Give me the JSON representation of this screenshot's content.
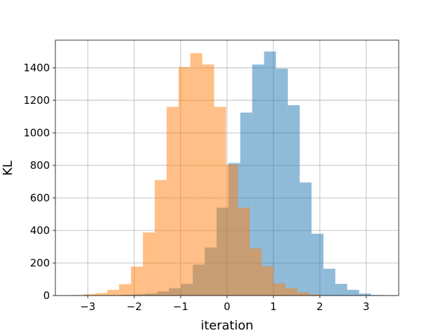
{
  "chart_data": {
    "type": "histogram",
    "title": "",
    "xlabel": "iteration",
    "ylabel": "KL",
    "xlim": [
      -3.7,
      3.7
    ],
    "ylim": [
      0,
      1570
    ],
    "xticks": [
      -3,
      -2,
      -1,
      0,
      1,
      2,
      3
    ],
    "xtick_labels": [
      "−3",
      "−2",
      "−1",
      "0",
      "1",
      "2",
      "3"
    ],
    "yticks": [
      0,
      200,
      400,
      600,
      800,
      1000,
      1200,
      1400
    ],
    "ytick_labels": [
      "0",
      "200",
      "400",
      "600",
      "800",
      "1000",
      "1200",
      "1400"
    ],
    "grid": true,
    "legend": false,
    "series": [
      {
        "color": "#1f77b4",
        "opacity": 0.5,
        "bin_edges": [
          -2.53,
          -2.274,
          -2.018,
          -1.762,
          -1.506,
          -1.25,
          -0.994,
          -0.738,
          -0.482,
          -0.226,
          0.03,
          0.286,
          0.542,
          0.798,
          1.054,
          1.31,
          1.566,
          1.822,
          2.078,
          2.334,
          2.59,
          2.846,
          3.102,
          3.358
        ],
        "counts": [
          2,
          5,
          8,
          12,
          25,
          45,
          72,
          190,
          295,
          540,
          815,
          1125,
          1420,
          1500,
          1395,
          1170,
          695,
          380,
          165,
          72,
          35,
          12,
          3
        ]
      },
      {
        "color": "#ff7f0e",
        "opacity": 0.5,
        "bin_edges": [
          -3.35,
          -3.094,
          -2.838,
          -2.582,
          -2.326,
          -2.07,
          -1.814,
          -1.558,
          -1.302,
          -1.046,
          -0.79,
          -0.534,
          -0.278,
          -0.022,
          0.234,
          0.49,
          0.746,
          1.002,
          1.258,
          1.514,
          1.77,
          2.014
        ],
        "counts": [
          3,
          8,
          15,
          35,
          70,
          178,
          388,
          710,
          1160,
          1405,
          1490,
          1420,
          1160,
          805,
          540,
          290,
          180,
          75,
          45,
          20,
          8
        ]
      }
    ]
  }
}
